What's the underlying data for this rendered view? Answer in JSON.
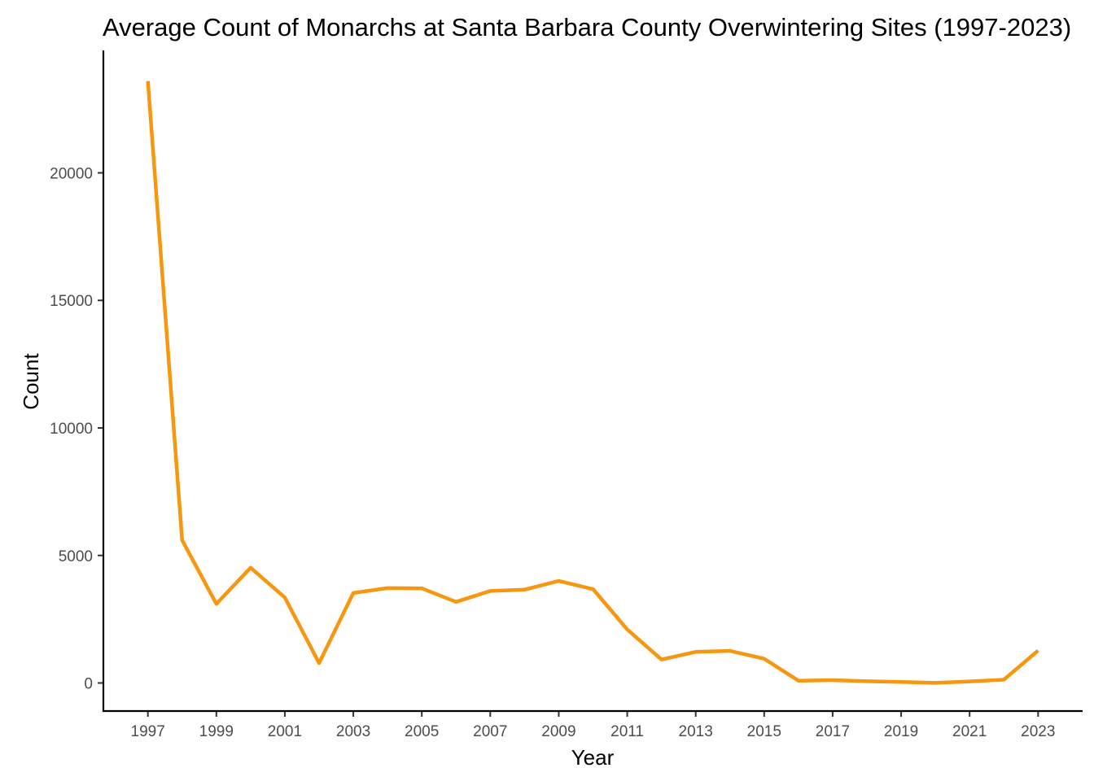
{
  "chart_data": {
    "type": "line",
    "title": "Average Count of Monarchs at Santa Barbara County Overwintering Sites (1997-2023)",
    "xlabel": "Year",
    "ylabel": "Count",
    "x": [
      1997,
      1998,
      1999,
      2000,
      2001,
      2002,
      2003,
      2004,
      2005,
      2006,
      2007,
      2008,
      2009,
      2010,
      2011,
      2012,
      2013,
      2014,
      2015,
      2016,
      2017,
      2018,
      2019,
      2020,
      2021,
      2022,
      2023
    ],
    "xticks": [
      "1997",
      "1999",
      "2001",
      "2003",
      "2005",
      "2007",
      "2009",
      "2011",
      "2013",
      "2015",
      "2017",
      "2019",
      "2021",
      "2023"
    ],
    "yticks": [
      "0",
      "5000",
      "10000",
      "15000",
      "20000"
    ],
    "xlim": [
      1995.7,
      2024.3
    ],
    "ylim": [
      -1100,
      24800
    ],
    "grid": false,
    "colors": {
      "line": "#f7960f"
    },
    "series": [
      {
        "values": [
          23600,
          5600,
          3100,
          4520,
          3350,
          780,
          3530,
          3720,
          3710,
          3180,
          3610,
          3660,
          4000,
          3680,
          2100,
          920,
          1220,
          1260,
          950,
          90,
          110,
          70,
          40,
          5,
          60,
          130,
          1270
        ]
      }
    ]
  }
}
